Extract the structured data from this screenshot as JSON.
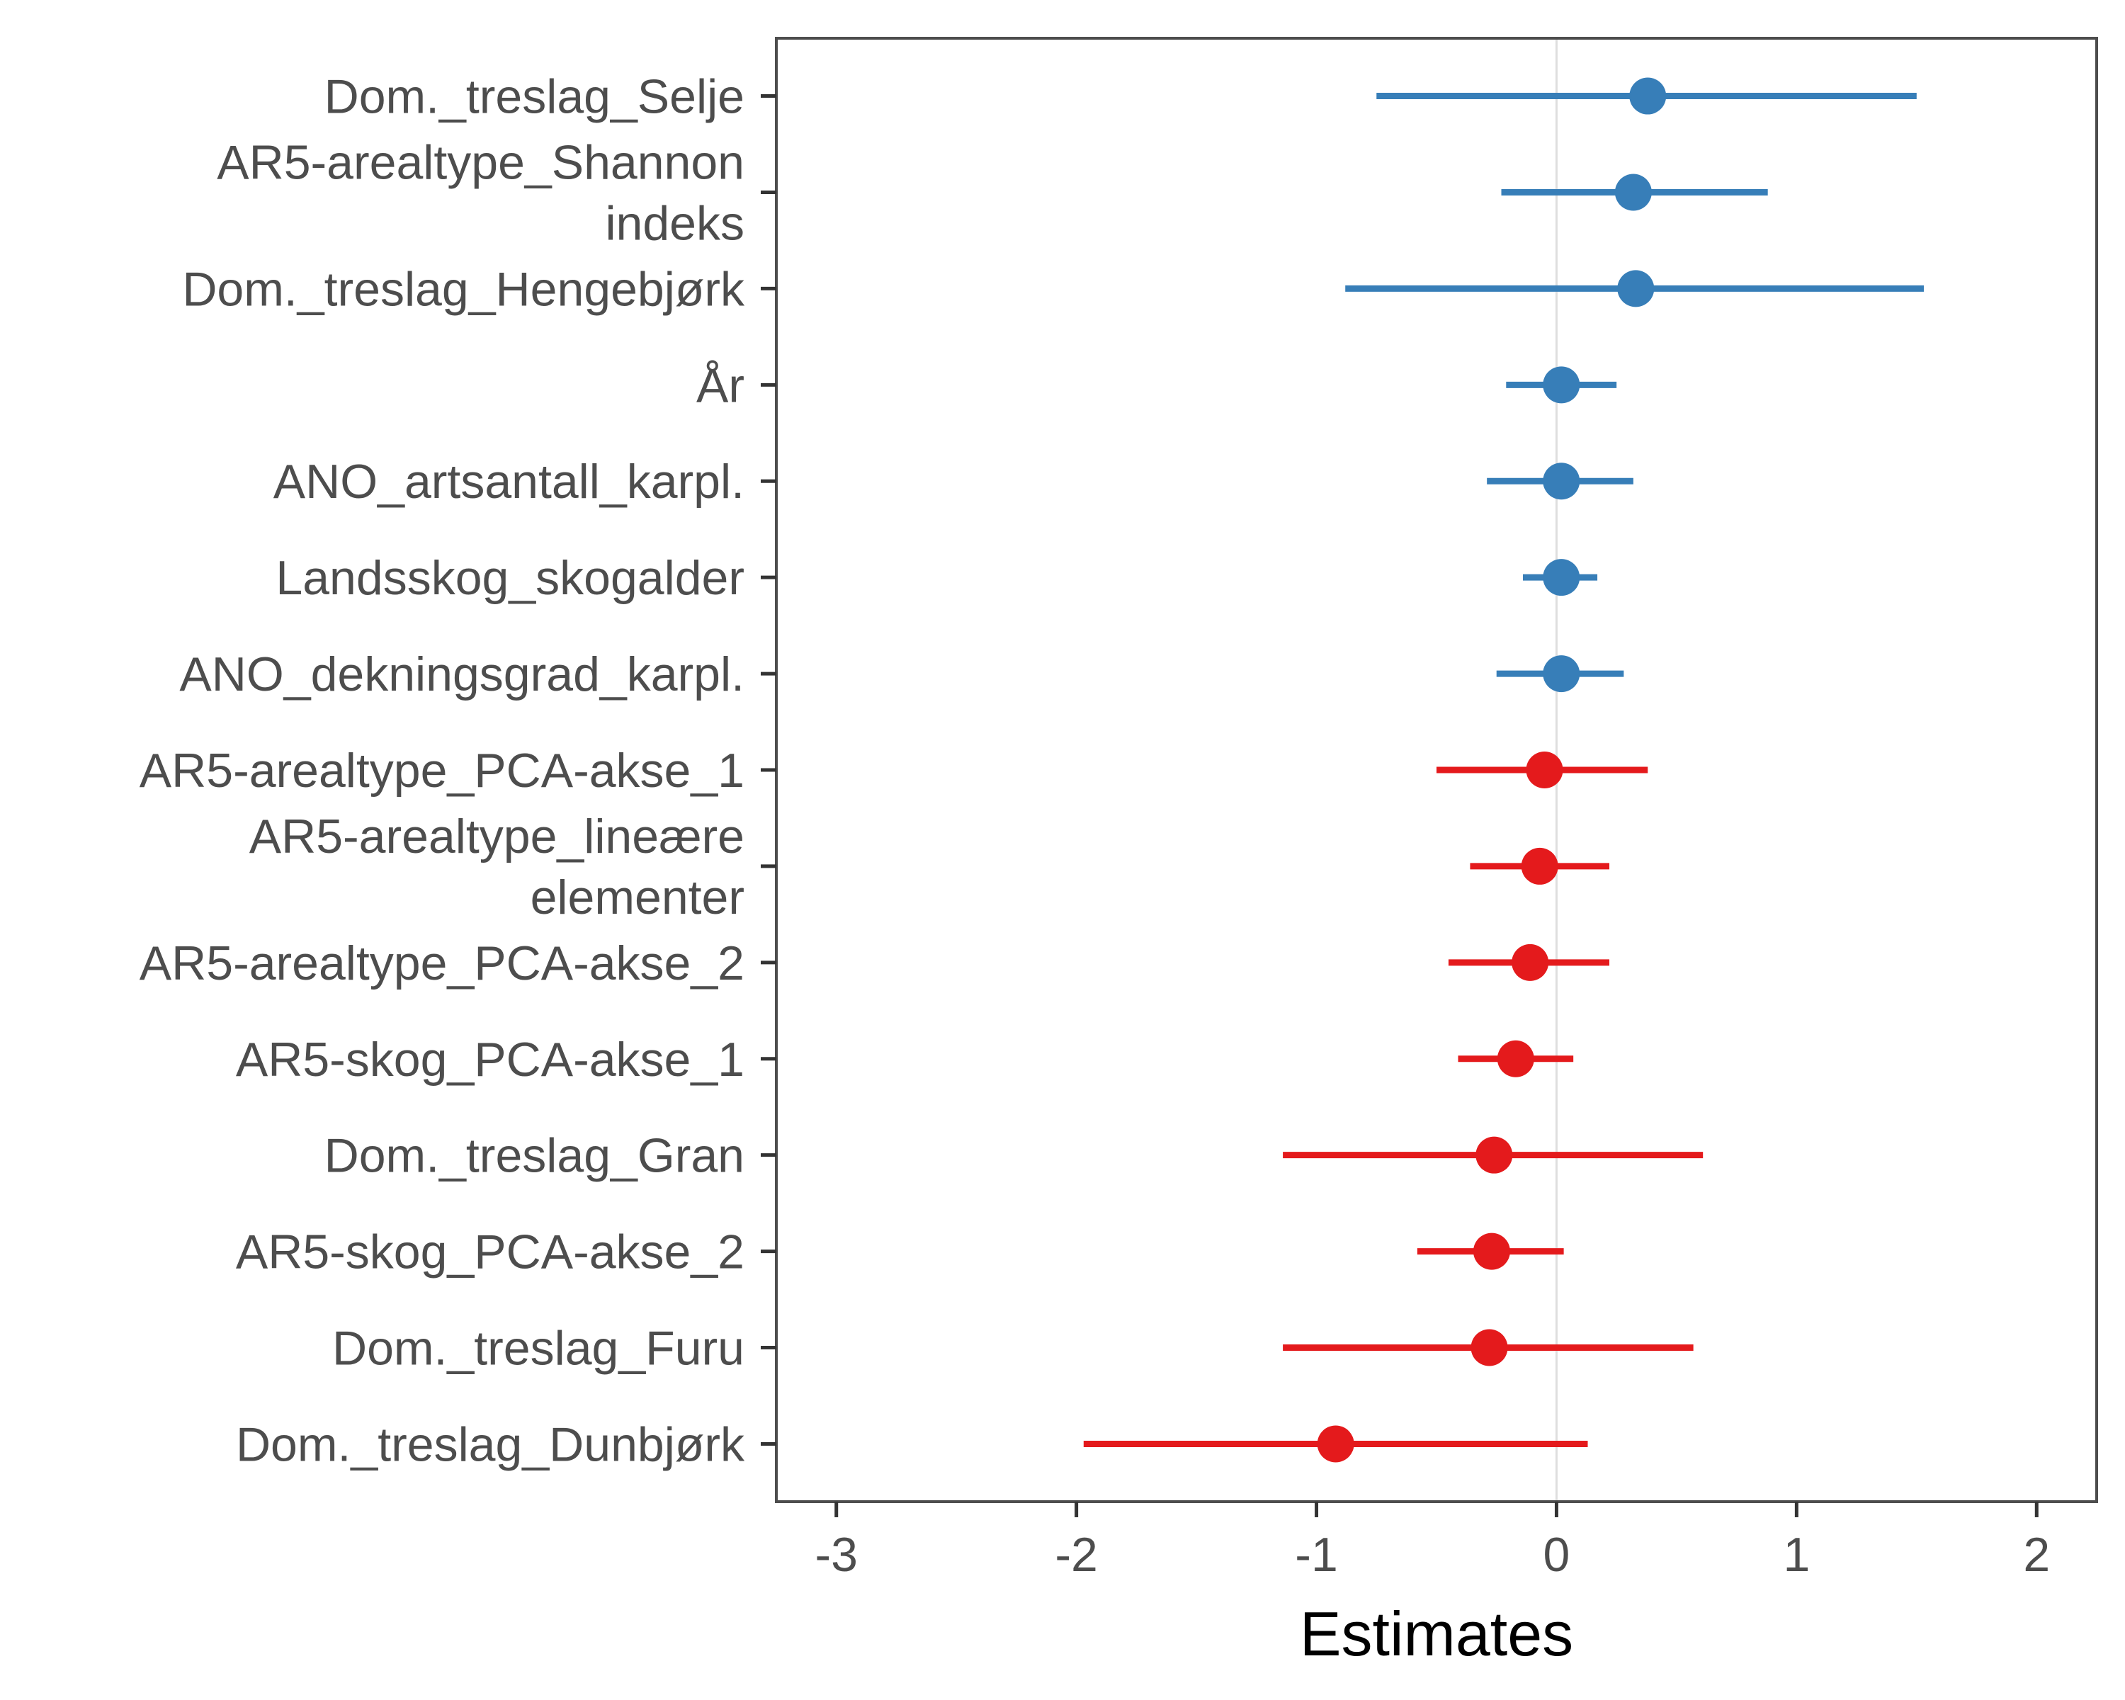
{
  "chart_data": {
    "type": "forest",
    "xlabel": "Estimates",
    "ylabel": "",
    "xlim": [
      -3.25,
      2.25
    ],
    "xticks": [
      -3,
      -2,
      -1,
      0,
      1,
      2
    ],
    "xtick_labels": [
      "-3",
      "-2",
      "-1",
      "0",
      "1",
      "2"
    ],
    "reference_line": 0,
    "grid": false,
    "colors": {
      "positive": "#377eb8",
      "negative": "#e41a1c"
    },
    "rows": [
      {
        "label": [
          "Dom._treslag_Selje"
        ],
        "estimate": 0.38,
        "lower": -0.75,
        "upper": 1.5,
        "sign": "positive"
      },
      {
        "label": [
          "AR5-arealtype_Shannon",
          "indeks"
        ],
        "estimate": 0.32,
        "lower": -0.23,
        "upper": 0.88,
        "sign": "positive"
      },
      {
        "label": [
          "Dom._treslag_Hengebjørk"
        ],
        "estimate": 0.33,
        "lower": -0.88,
        "upper": 1.53,
        "sign": "positive"
      },
      {
        "label": [
          "År"
        ],
        "estimate": 0.02,
        "lower": -0.21,
        "upper": 0.25,
        "sign": "positive"
      },
      {
        "label": [
          "ANO_artsantall_karpl."
        ],
        "estimate": 0.02,
        "lower": -0.29,
        "upper": 0.32,
        "sign": "positive"
      },
      {
        "label": [
          "Landsskog_skogalder"
        ],
        "estimate": 0.02,
        "lower": -0.14,
        "upper": 0.17,
        "sign": "positive"
      },
      {
        "label": [
          "ANO_dekningsgrad_karpl."
        ],
        "estimate": 0.02,
        "lower": -0.25,
        "upper": 0.28,
        "sign": "positive"
      },
      {
        "label": [
          "AR5-arealtype_PCA-akse_1"
        ],
        "estimate": -0.05,
        "lower": -0.5,
        "upper": 0.38,
        "sign": "negative"
      },
      {
        "label": [
          "AR5-arealtype_lineære",
          "elementer"
        ],
        "estimate": -0.07,
        "lower": -0.36,
        "upper": 0.22,
        "sign": "negative"
      },
      {
        "label": [
          "AR5-arealtype_PCA-akse_2"
        ],
        "estimate": -0.11,
        "lower": -0.45,
        "upper": 0.22,
        "sign": "negative"
      },
      {
        "label": [
          "AR5-skog_PCA-akse_1"
        ],
        "estimate": -0.17,
        "lower": -0.41,
        "upper": 0.07,
        "sign": "negative"
      },
      {
        "label": [
          "Dom._treslag_Gran"
        ],
        "estimate": -0.26,
        "lower": -1.14,
        "upper": 0.61,
        "sign": "negative"
      },
      {
        "label": [
          "AR5-skog_PCA-akse_2"
        ],
        "estimate": -0.27,
        "lower": -0.58,
        "upper": 0.03,
        "sign": "negative"
      },
      {
        "label": [
          "Dom._treslag_Furu"
        ],
        "estimate": -0.28,
        "lower": -1.14,
        "upper": 0.57,
        "sign": "negative"
      },
      {
        "label": [
          "Dom._treslag_Dunbjørk"
        ],
        "estimate": -0.92,
        "lower": -1.97,
        "upper": 0.13,
        "sign": "negative"
      }
    ]
  }
}
